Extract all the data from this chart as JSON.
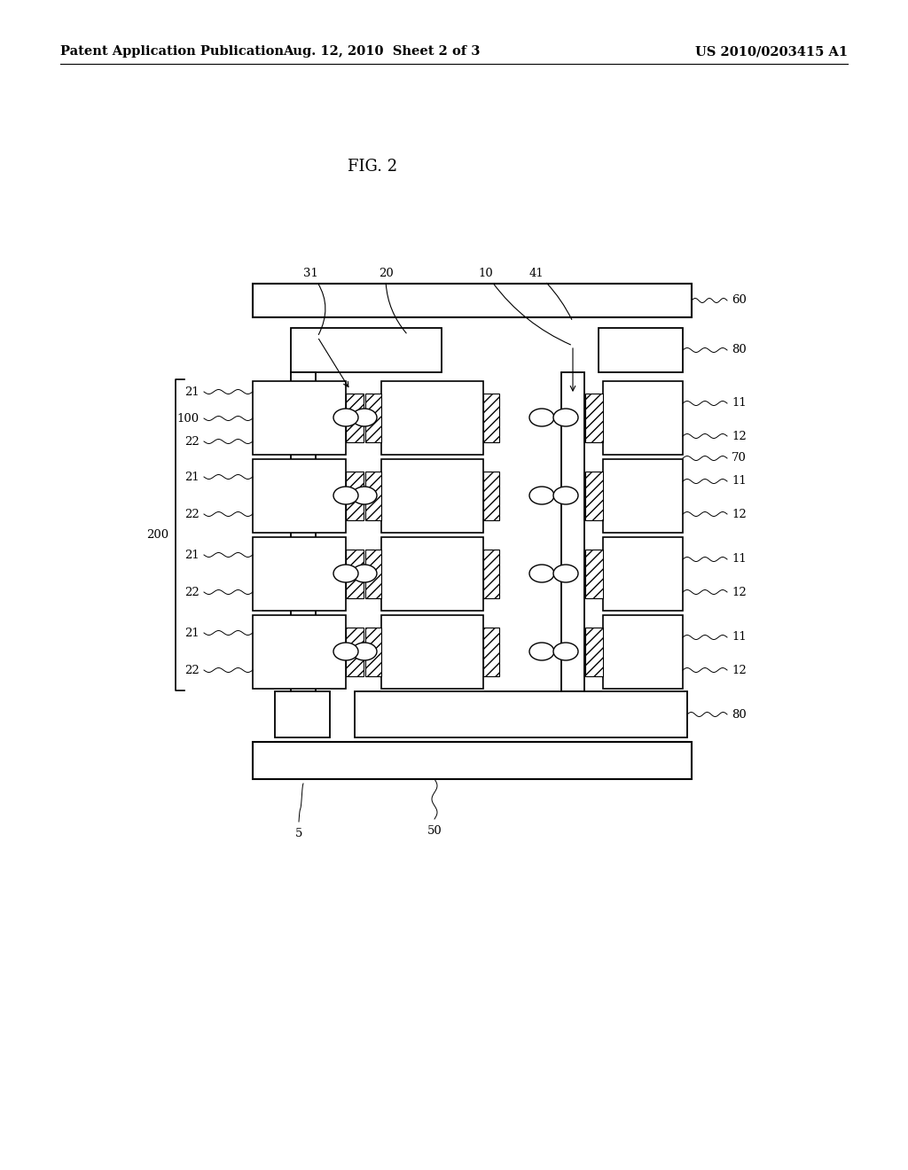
{
  "title": "FIG. 2",
  "header_left": "Patent Application Publication",
  "header_center": "Aug. 12, 2010  Sheet 2 of 3",
  "header_right": "US 2010/0203415 A1",
  "bg_color": "#ffffff",
  "line_color": "#000000",
  "fig_label_fontsize": 13,
  "header_fontsize": 10.5
}
